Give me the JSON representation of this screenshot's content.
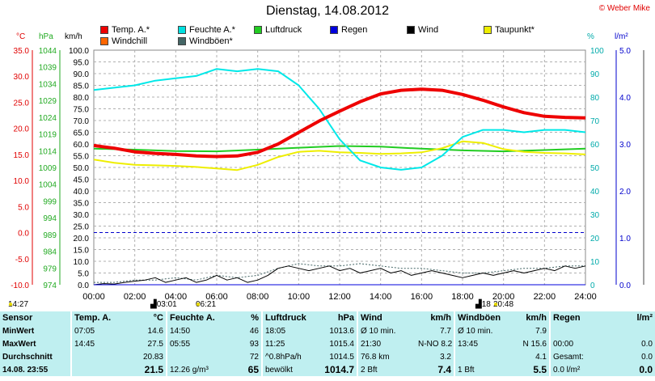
{
  "title": "Dienstag, 14.08.2012",
  "copyright": "© Weber Mike",
  "legend": [
    {
      "label": "Temp. A.*",
      "color": "#ee0000"
    },
    {
      "label": "Feuchte A.*",
      "color": "#00e0e0"
    },
    {
      "label": "Luftdruck",
      "color": "#22cc22"
    },
    {
      "label": "Regen",
      "color": "#0000dd"
    },
    {
      "label": "Wind",
      "color": "#000000"
    },
    {
      "label": "Taupunkt*",
      "color": "#eeee00"
    },
    {
      "label": "Windchill",
      "color": "#ff6600"
    },
    {
      "label": "Windböen*",
      "color": "#446666"
    }
  ],
  "units": {
    "celsius": "°C",
    "hpa": "hPa",
    "kmh": "km/h",
    "percent": "%",
    "rain": "l/m²"
  },
  "chart_data": {
    "type": "line",
    "x_ticks": [
      "00:00",
      "02:00",
      "04:00",
      "06:00",
      "08:00",
      "10:00",
      "12:00",
      "14:00",
      "16:00",
      "18:00",
      "20:00",
      "22:00",
      "24:00"
    ],
    "axes": {
      "temp": {
        "label": "°C",
        "min": -10,
        "max": 35,
        "ticks": [
          "35.0",
          "30.0",
          "25.0",
          "20.0",
          "15.0",
          "10.0",
          "5.0",
          "0.0",
          "-5.0",
          "-10.0"
        ]
      },
      "pressure": {
        "label": "hPa",
        "min": 974,
        "max": 1044,
        "ticks": [
          "1044",
          "1039",
          "1034",
          "1029",
          "1024",
          "1019",
          "1014",
          "1009",
          "1004",
          "999",
          "994",
          "989",
          "984",
          "979",
          "974"
        ]
      },
      "wind": {
        "label": "km/h",
        "min": 0,
        "max": 100,
        "ticks": [
          "100.0",
          "95.0",
          "90.0",
          "85.0",
          "80.0",
          "75.0",
          "70.0",
          "65.0",
          "60.0",
          "55.0",
          "50.0",
          "45.0",
          "40.0",
          "35.0",
          "30.0",
          "25.0",
          "20.0",
          "15.0",
          "10.0",
          "5.0",
          "0.0"
        ]
      },
      "humidity": {
        "label": "%",
        "min": 0,
        "max": 100,
        "ticks": [
          "100",
          "90",
          "80",
          "70",
          "60",
          "50",
          "40",
          "30",
          "20",
          "10",
          "0"
        ]
      },
      "rain": {
        "label": "l/m²",
        "min": 0,
        "max": 5,
        "ticks": [
          "5.0",
          "4.0",
          "3.0",
          "2.0",
          "1.0",
          "0.0"
        ]
      }
    },
    "grid": true,
    "series": [
      {
        "name": "Temp. A.*",
        "axis": "temp",
        "color": "#ee0000",
        "width": 4,
        "x": [
          0,
          1,
          2,
          3,
          4,
          5,
          6,
          7,
          8,
          9,
          10,
          11,
          12,
          13,
          14,
          15,
          16,
          17,
          18,
          19,
          20,
          21,
          22,
          23,
          24
        ],
        "y": [
          16.7,
          16.2,
          15.5,
          15.2,
          15.0,
          14.7,
          14.6,
          14.7,
          15.4,
          17.0,
          19.2,
          21.4,
          23.3,
          25.1,
          26.6,
          27.3,
          27.5,
          27.3,
          26.5,
          25.4,
          24.1,
          23.0,
          22.3,
          22.1,
          22.0
        ]
      },
      {
        "name": "Feuchte A.*",
        "axis": "humidity",
        "color": "#00e8e8",
        "width": 2,
        "x": [
          0,
          1,
          2,
          3,
          4,
          5,
          6,
          7,
          8,
          9,
          10,
          11,
          12,
          13,
          14,
          15,
          16,
          17,
          18,
          19,
          20,
          21,
          22,
          23,
          24
        ],
        "y": [
          83,
          84,
          85,
          87,
          88,
          89,
          92,
          91,
          92,
          91,
          85,
          75,
          62,
          53,
          50,
          49,
          50,
          55,
          63,
          66,
          66,
          65,
          66,
          66,
          65
        ]
      },
      {
        "name": "Luftdruck",
        "axis": "pressure",
        "color": "#22cc22",
        "width": 2,
        "x": [
          0,
          2,
          4,
          6,
          8,
          10,
          12,
          14,
          16,
          18,
          20,
          22,
          24
        ],
        "y": [
          1014.6,
          1014.3,
          1013.9,
          1013.8,
          1014.3,
          1014.9,
          1015.4,
          1015.2,
          1014.6,
          1014.1,
          1013.8,
          1014.2,
          1014.6
        ]
      },
      {
        "name": "Taupunkt*",
        "axis": "temp",
        "color": "#eeee00",
        "width": 2,
        "x": [
          0,
          1,
          2,
          3,
          4,
          5,
          6,
          7,
          8,
          9,
          10,
          11,
          12,
          13,
          14,
          15,
          16,
          17,
          18,
          19,
          20,
          21,
          22,
          23,
          24
        ],
        "y": [
          14.0,
          13.4,
          13.0,
          12.9,
          12.8,
          12.6,
          12.3,
          12.0,
          13.0,
          14.5,
          15.5,
          15.7,
          15.4,
          15.3,
          15.1,
          15.2,
          15.4,
          16.2,
          17.5,
          17.2,
          16.0,
          15.5,
          15.3,
          15.2,
          15.0
        ]
      },
      {
        "name": "Wind",
        "axis": "wind",
        "color": "#000000",
        "width": 1,
        "x": [
          0,
          0.5,
          1,
          1.5,
          2,
          2.5,
          3,
          3.5,
          4,
          4.5,
          5,
          5.5,
          6,
          6.5,
          7,
          7.5,
          8,
          8.5,
          9,
          9.5,
          10,
          10.5,
          11,
          11.5,
          12,
          12.5,
          13,
          13.5,
          14,
          14.5,
          15,
          15.5,
          16,
          16.5,
          17,
          17.5,
          18,
          18.5,
          19,
          19.5,
          20,
          20.5,
          21,
          21.5,
          22,
          22.5,
          23,
          23.5,
          24
        ],
        "y": [
          0,
          0.5,
          0.3,
          1,
          1.5,
          2,
          3,
          1,
          2,
          3,
          1,
          2,
          4,
          2,
          3,
          1,
          2,
          4,
          7,
          8,
          7,
          6,
          7,
          8,
          6,
          7,
          5,
          6,
          7,
          5,
          6,
          4,
          5,
          6,
          5,
          4,
          3,
          4,
          5,
          4,
          5,
          6,
          5,
          6,
          7,
          6,
          8,
          7,
          8
        ]
      },
      {
        "name": "Windböen*",
        "axis": "wind",
        "color": "#446666",
        "width": 1,
        "dash": "2,2",
        "x": [
          0,
          1,
          2,
          3,
          4,
          5,
          6,
          7,
          8,
          9,
          10,
          11,
          12,
          13,
          14,
          15,
          16,
          17,
          18,
          19,
          20,
          21,
          22,
          23,
          24
        ],
        "y": [
          1,
          1,
          2,
          2,
          3,
          2,
          4,
          3,
          4,
          7,
          9,
          8,
          8,
          9,
          8,
          7,
          7,
          6,
          5,
          5,
          6,
          7,
          7,
          8,
          8
        ]
      },
      {
        "name": "Regen",
        "axis": "rain",
        "color": "#0000dd",
        "width": 1,
        "x": [
          0,
          24
        ],
        "y": [
          0,
          0
        ]
      }
    ],
    "reference_line": {
      "axis": "temp",
      "value": 0.0,
      "color": "#0000cc"
    }
  },
  "time_markers": [
    {
      "text": "14:27",
      "sun": "●"
    },
    {
      "text": "03:01"
    },
    {
      "text": "06:21",
      "sun": "●"
    },
    {
      "text": "18"
    },
    {
      "text": "20:48",
      "sun": "●"
    }
  ],
  "stats": {
    "headers": [
      "Sensor",
      "Temp. A.",
      "°C",
      "Feuchte A.",
      "%",
      "Luftdruck",
      "hPa",
      "Wind",
      "km/h",
      "Windböen",
      "km/h",
      "Regen",
      "l/m²"
    ],
    "rows": [
      {
        "label": "MinWert",
        "c": [
          "07:05",
          "14.6",
          "14:50",
          "46",
          "18:05",
          "1013.6",
          "Ø 10 min.",
          "7.7",
          "Ø 10 min.",
          "7.9",
          "",
          ""
        ]
      },
      {
        "label": "MaxWert",
        "c": [
          "14:45",
          "27.5",
          "05:55",
          "93",
          "11:25",
          "1015.4",
          "21:30",
          "N-NO 8.2",
          "13:45",
          "N 15.6",
          "00:00",
          "0.0"
        ]
      },
      {
        "label": "Durchschnitt",
        "c": [
          "",
          "20.83",
          "",
          "72",
          "^0.8hPa/h",
          "1014.5",
          "76.8 km",
          "3.2",
          "",
          "4.1",
          "Gesamt:",
          "0.0"
        ]
      },
      {
        "label": "14.08.  23:55",
        "c": [
          "",
          "21.5",
          "12.26 g/m³",
          "65",
          "bewölkt",
          "1014.7",
          "2 Bft",
          "7.4",
          "1 Bft",
          "5.5",
          "0.0 l/m²",
          "0.0"
        ]
      }
    ]
  }
}
